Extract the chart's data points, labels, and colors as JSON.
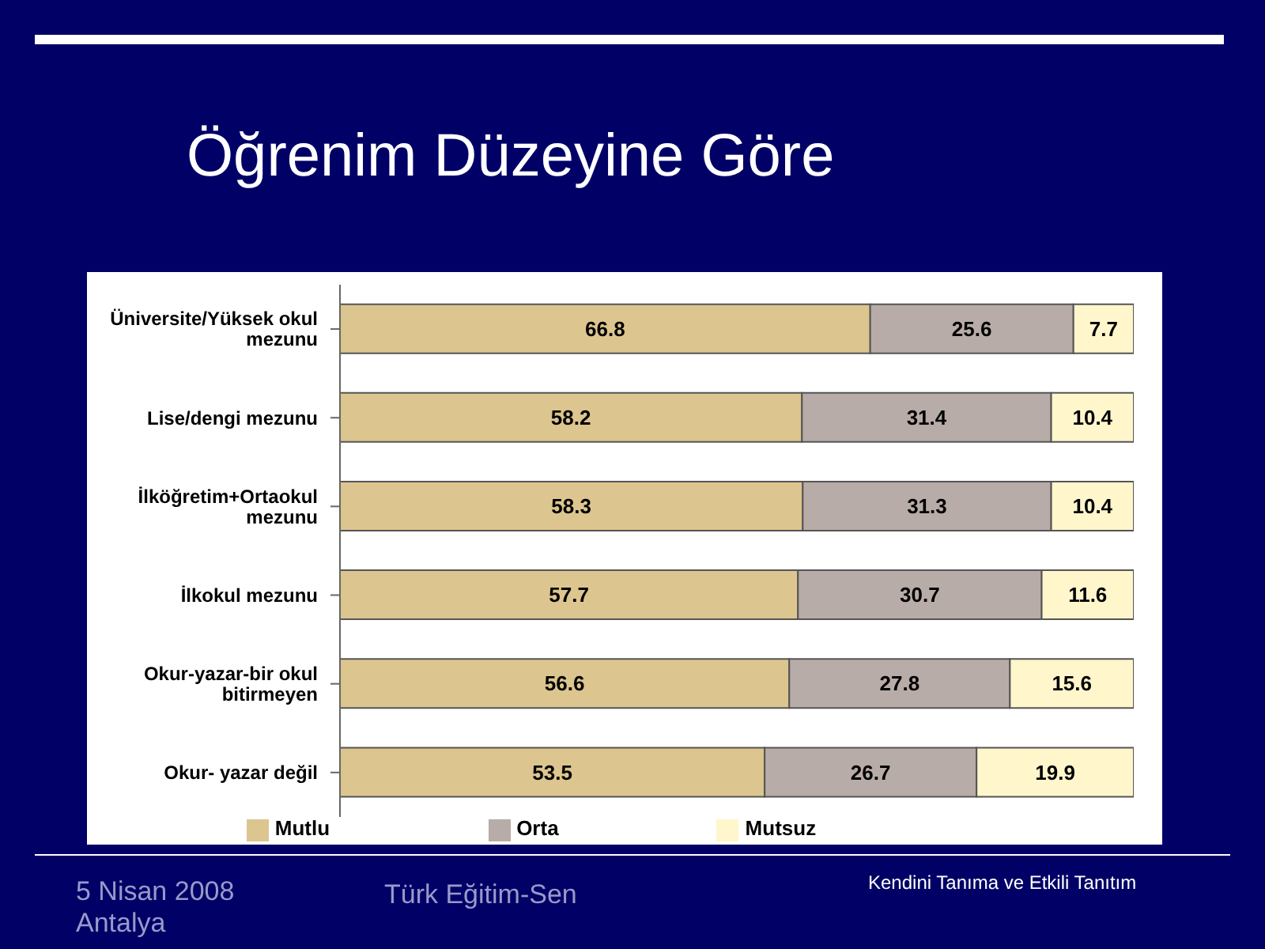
{
  "chart_data": {
    "type": "bar",
    "orientation": "horizontal",
    "stacked": true,
    "title": "Öğrenim Düzeyine Göre",
    "categories": [
      "Üniversite/Yüksek okul mezunu",
      "Lise/dengi mezunu",
      "İlköğretim+Ortaokul mezunu",
      "İlkokul mezunu",
      "Okur-yazar-bir okul bitirmeyen",
      "Okur- yazar değil"
    ],
    "series": [
      {
        "name": "Mutlu",
        "color": "#dcc58f",
        "values": [
          66.8,
          58.2,
          58.3,
          57.7,
          56.6,
          53.5
        ]
      },
      {
        "name": "Orta",
        "color": "#b8aca8",
        "values": [
          25.6,
          31.4,
          31.3,
          30.7,
          27.8,
          26.7
        ]
      },
      {
        "name": "Mutsuz",
        "color": "#fff6cc",
        "values": [
          7.7,
          10.4,
          10.4,
          11.6,
          15.6,
          19.9
        ]
      }
    ],
    "xlim": [
      0,
      100
    ],
    "tick_labels": "y",
    "data_labels": true,
    "legend": "bottom",
    "grid": false,
    "annotations": [
      "5 Nisan 2008 Antalya",
      "Türk Eğitim-Sen",
      "Kendini Tanıma ve Etkili Tanıtım"
    ]
  }
}
